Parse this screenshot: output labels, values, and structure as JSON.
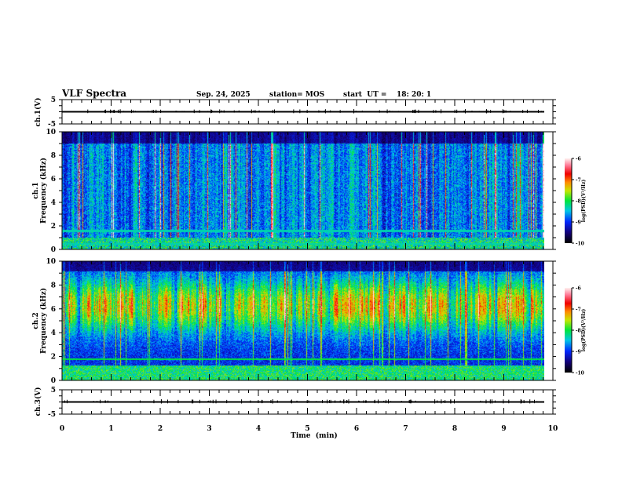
{
  "header": {
    "title": "VLF Spectra",
    "date": "Sep. 24, 2025",
    "station": "station= MOS",
    "start": "start  UT =    18: 20: 1"
  },
  "chart_data": [
    {
      "type": "line",
      "name": "ch1-waveform",
      "ylabel": "ch.1(V)",
      "ylim": [
        -5,
        5
      ],
      "yticks": [
        "5",
        "-5"
      ],
      "baseline": 0
    },
    {
      "type": "heatmap",
      "name": "ch1-spectrogram",
      "ylabel_top": "ch.1",
      "ylabel": "Frequency (kHz)",
      "ylim": [
        0,
        10
      ],
      "yticks": [
        "0",
        "2",
        "4",
        "6",
        "8",
        "10"
      ],
      "colorbar": {
        "label": "log(PSD)(V²/Hz)",
        "range": [
          -10,
          -6
        ],
        "ticks": [
          "-6",
          "-7",
          "-8",
          "-9",
          "-10"
        ]
      }
    },
    {
      "type": "heatmap",
      "name": "ch2-spectrogram",
      "ylabel_top": "ch.2",
      "ylabel": "Frequency (kHz)",
      "ylim": [
        0,
        10
      ],
      "yticks": [
        "0",
        "2",
        "4",
        "6",
        "8",
        "10"
      ],
      "colorbar": {
        "label": "log(PSD)(V²/Hz)",
        "range": [
          -10,
          -6
        ],
        "ticks": [
          "-6",
          "-7",
          "-8",
          "-9",
          "-10"
        ]
      }
    },
    {
      "type": "line",
      "name": "ch3-waveform",
      "ylabel": "ch.3(V)",
      "ylim": [
        -5,
        5
      ],
      "yticks": [
        "5",
        "-5"
      ],
      "baseline": 0
    }
  ],
  "xaxis": {
    "label": "Time  (min)",
    "xlim": [
      0,
      10
    ],
    "ticks": [
      "0",
      "1",
      "2",
      "3",
      "4",
      "5",
      "6",
      "7",
      "8",
      "9",
      "10"
    ],
    "data_end": 9.83
  }
}
